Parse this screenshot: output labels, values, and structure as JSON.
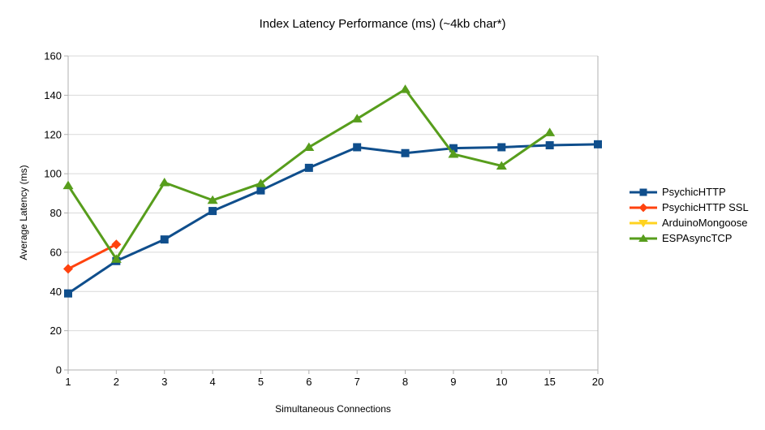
{
  "chart_data": {
    "type": "line",
    "title": "Index Latency Performance (ms) (~4kb char*)",
    "xlabel": "Simultaneous Connections",
    "ylabel": "Average Latency (ms)",
    "categories": [
      "1",
      "2",
      "3",
      "4",
      "5",
      "6",
      "7",
      "8",
      "9",
      "10",
      "15",
      "20"
    ],
    "ylim": [
      0,
      160
    ],
    "ytick_step": 20,
    "ytick_labels": [
      "0",
      "20",
      "40",
      "60",
      "80",
      "100",
      "120",
      "140",
      "160"
    ],
    "grid": "horizontal",
    "legend_position": "right",
    "colors": {
      "background": "#ffffff",
      "gridline": "#d9d9d9",
      "axis": "#b0b0b0",
      "text": "#000000"
    },
    "series": [
      {
        "name": "PsychicHTTP",
        "color": "#0f4e8c",
        "marker": "square",
        "values": [
          39,
          55.5,
          66.5,
          81,
          91.5,
          103,
          113.5,
          110.5,
          113,
          113.5,
          114.5,
          115
        ]
      },
      {
        "name": "PsychicHTTP SSL",
        "color": "#ff420e",
        "marker": "diamond",
        "values": [
          51.5,
          64,
          null,
          null,
          null,
          null,
          null,
          null,
          null,
          null,
          null,
          null
        ]
      },
      {
        "name": "ArduinoMongoose",
        "color": "#ffd320",
        "marker": "triangle-down",
        "values": [
          null,
          null,
          null,
          null,
          null,
          null,
          null,
          null,
          null,
          null,
          null,
          null
        ]
      },
      {
        "name": "ESPAsyncTCP",
        "color": "#579d1c",
        "marker": "triangle-up",
        "values": [
          94,
          56.5,
          95.5,
          86.5,
          95,
          113.5,
          128,
          143,
          110,
          104,
          121,
          null
        ]
      }
    ]
  }
}
